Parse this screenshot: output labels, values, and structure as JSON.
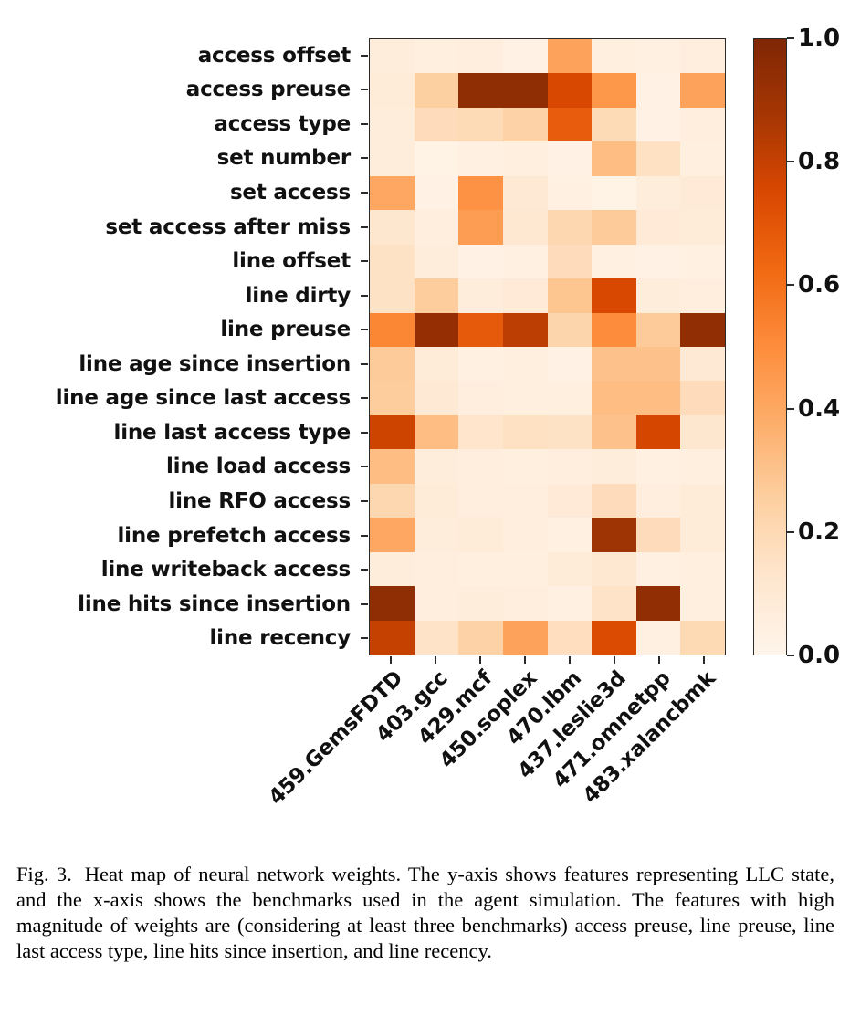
{
  "figure": {
    "caption_label": "Fig. 3.",
    "caption_text": "Heat map of neural network weights. The y-axis shows features representing LLC state, and the x-axis shows the benchmarks used in the agent simulation. The features with high magnitude of weights are (considering at least three benchmarks) access preuse, line preuse, line last access type, line hits since insertion, and line recency."
  },
  "chart_data": {
    "type": "heatmap",
    "colormap": "Oranges",
    "colormap_anchors": [
      "#fff5eb",
      "#fee6ce",
      "#fdd0a2",
      "#fdae6b",
      "#fd8d3c",
      "#f16913",
      "#d94801",
      "#a63603",
      "#7f2704"
    ],
    "rows": [
      "access offset",
      "access preuse",
      "access type",
      "set number",
      "set access",
      "set access after miss",
      "line offset",
      "line dirty",
      "line preuse",
      "line age since insertion",
      "line age since last access",
      "line last access type",
      "line load access",
      "line RFO access",
      "line prefetch access",
      "line writeback access",
      "line hits since insertion",
      "line recency"
    ],
    "columns": [
      "459.GemsFDTD",
      "403.gcc",
      "429.mcf",
      "450.soplex",
      "470.lbm",
      "437.leslie3d",
      "471.omnetpp",
      "483.xalancbmk"
    ],
    "values": [
      [
        0.07,
        0.05,
        0.06,
        0.03,
        0.42,
        0.05,
        0.04,
        0.06
      ],
      [
        0.08,
        0.25,
        0.95,
        0.95,
        0.75,
        0.46,
        0.03,
        0.42
      ],
      [
        0.07,
        0.18,
        0.19,
        0.24,
        0.67,
        0.19,
        0.03,
        0.06
      ],
      [
        0.07,
        0.02,
        0.04,
        0.05,
        0.03,
        0.32,
        0.16,
        0.05
      ],
      [
        0.4,
        0.03,
        0.48,
        0.1,
        0.04,
        0.02,
        0.07,
        0.09
      ],
      [
        0.12,
        0.06,
        0.44,
        0.11,
        0.21,
        0.27,
        0.09,
        0.08
      ],
      [
        0.15,
        0.07,
        0.03,
        0.04,
        0.18,
        0.04,
        0.03,
        0.04
      ],
      [
        0.15,
        0.26,
        0.07,
        0.09,
        0.29,
        0.75,
        0.07,
        0.06
      ],
      [
        0.52,
        0.93,
        0.68,
        0.82,
        0.22,
        0.5,
        0.27,
        0.94
      ],
      [
        0.27,
        0.08,
        0.04,
        0.05,
        0.03,
        0.3,
        0.3,
        0.1
      ],
      [
        0.26,
        0.1,
        0.06,
        0.05,
        0.05,
        0.32,
        0.32,
        0.18
      ],
      [
        0.78,
        0.32,
        0.13,
        0.16,
        0.15,
        0.3,
        0.76,
        0.12
      ],
      [
        0.32,
        0.07,
        0.06,
        0.05,
        0.06,
        0.07,
        0.04,
        0.05
      ],
      [
        0.21,
        0.08,
        0.06,
        0.06,
        0.09,
        0.18,
        0.06,
        0.08
      ],
      [
        0.4,
        0.07,
        0.08,
        0.06,
        0.04,
        0.9,
        0.18,
        0.08
      ],
      [
        0.07,
        0.06,
        0.05,
        0.05,
        0.08,
        0.11,
        0.04,
        0.05
      ],
      [
        0.95,
        0.06,
        0.07,
        0.06,
        0.04,
        0.14,
        0.94,
        0.05
      ],
      [
        0.8,
        0.14,
        0.24,
        0.42,
        0.17,
        0.74,
        0.04,
        0.2
      ]
    ],
    "value_range": [
      0.0,
      1.0
    ],
    "colorbar": {
      "position": "right",
      "tick_labels": [
        "1.0",
        "0.8",
        "0.6",
        "0.4",
        "0.2",
        "0.0"
      ],
      "tick_values": [
        1.0,
        0.8,
        0.6,
        0.4,
        0.2,
        0.0
      ]
    },
    "legend_position": "none",
    "grid": false
  }
}
